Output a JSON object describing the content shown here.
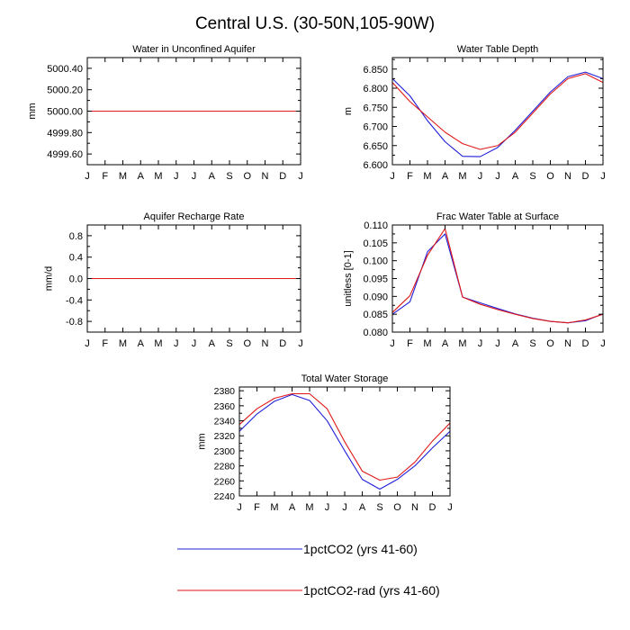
{
  "figure_title": "Central U.S. (30-50N,105-90W)",
  "months": [
    "J",
    "F",
    "M",
    "A",
    "M",
    "J",
    "J",
    "A",
    "S",
    "O",
    "N",
    "D",
    "J"
  ],
  "colors": {
    "blue": "#1f1fd8",
    "red": "#e01818"
  },
  "legend": [
    {
      "label": "1pctCO2 (yrs 41-60)",
      "color": "#1f1fd8"
    },
    {
      "label": "1pctCO2-rad (yrs 41-60)",
      "color": "#e01818"
    }
  ],
  "chart_data": [
    {
      "type": "line",
      "title": "Water in Unconfined Aquifer",
      "ylabel": "mm",
      "xlabel": "",
      "ylim": [
        4999.5,
        5000.5
      ],
      "yticks": [
        4999.6,
        4999.8,
        5000.0,
        5000.2,
        5000.4
      ],
      "ytick_labels": [
        "4999.60",
        "4999.80",
        "5000.00",
        "5000.20",
        "5000.40"
      ],
      "series": [
        {
          "name": "1pctCO2 (yrs 41-60)",
          "color": "blue",
          "values": [
            5000,
            5000,
            5000,
            5000,
            5000,
            5000,
            5000,
            5000,
            5000,
            5000,
            5000,
            5000,
            5000
          ]
        },
        {
          "name": "1pctCO2-rad (yrs 41-60)",
          "color": "red",
          "values": [
            5000,
            5000,
            5000,
            5000,
            5000,
            5000,
            5000,
            5000,
            5000,
            5000,
            5000,
            5000,
            5000
          ]
        }
      ]
    },
    {
      "type": "line",
      "title": "Water Table Depth",
      "ylabel": "m",
      "xlabel": "",
      "ylim": [
        6.6,
        6.88
      ],
      "yticks": [
        6.6,
        6.65,
        6.7,
        6.75,
        6.8,
        6.85
      ],
      "ytick_labels": [
        "6.600",
        "6.650",
        "6.700",
        "6.750",
        "6.800",
        "6.850"
      ],
      "series": [
        {
          "name": "1pctCO2 (yrs 41-60)",
          "color": "blue",
          "values": [
            6.825,
            6.78,
            6.715,
            6.66,
            6.622,
            6.621,
            6.645,
            6.69,
            6.74,
            6.79,
            6.83,
            6.842,
            6.825
          ]
        },
        {
          "name": "1pctCO2-rad (yrs 41-60)",
          "color": "red",
          "values": [
            6.815,
            6.765,
            6.725,
            6.685,
            6.655,
            6.64,
            6.65,
            6.685,
            6.735,
            6.785,
            6.825,
            6.838,
            6.815
          ]
        }
      ]
    },
    {
      "type": "line",
      "title": "Aquifer Recharge Rate",
      "ylabel": "mm/d",
      "xlabel": "",
      "ylim": [
        -1.0,
        1.0
      ],
      "yticks": [
        -0.8,
        -0.4,
        0.0,
        0.4,
        0.8
      ],
      "ytick_labels": [
        "-0.8",
        "-0.4",
        "0.0",
        "0.4",
        "0.8"
      ],
      "series": [
        {
          "name": "1pctCO2 (yrs 41-60)",
          "color": "blue",
          "values": [
            0,
            0,
            0,
            0,
            0,
            0,
            0,
            0,
            0,
            0,
            0,
            0,
            0
          ]
        },
        {
          "name": "1pctCO2-rad (yrs 41-60)",
          "color": "red",
          "values": [
            0,
            0,
            0,
            0,
            0,
            0,
            0,
            0,
            0,
            0,
            0,
            0,
            0
          ]
        }
      ]
    },
    {
      "type": "line",
      "title": "Frac Water Table at Surface",
      "ylabel": "unitless [0-1]",
      "xlabel": "",
      "ylim": [
        0.08,
        0.11
      ],
      "yticks": [
        0.08,
        0.085,
        0.09,
        0.095,
        0.1,
        0.105,
        0.11
      ],
      "ytick_labels": [
        "0.080",
        "0.085",
        "0.090",
        "0.095",
        "0.100",
        "0.105",
        "0.110"
      ],
      "series": [
        {
          "name": "1pctCO2 (yrs 41-60)",
          "color": "blue",
          "values": [
            0.085,
            0.0885,
            0.1025,
            0.1075,
            0.0898,
            0.0882,
            0.0866,
            0.0851,
            0.0839,
            0.083,
            0.0826,
            0.0832,
            0.0851
          ]
        },
        {
          "name": "1pctCO2-rad (yrs 41-60)",
          "color": "red",
          "values": [
            0.0855,
            0.0902,
            0.1015,
            0.109,
            0.0898,
            0.0878,
            0.0863,
            0.085,
            0.0838,
            0.083,
            0.0826,
            0.0834,
            0.085
          ]
        }
      ]
    },
    {
      "type": "line",
      "title": "Total Water Storage",
      "ylabel": "mm",
      "xlabel": "",
      "ylim": [
        2240,
        2385
      ],
      "yticks": [
        2240,
        2260,
        2280,
        2300,
        2320,
        2340,
        2360,
        2380
      ],
      "ytick_labels": [
        "2240",
        "2260",
        "2280",
        "2300",
        "2320",
        "2340",
        "2360",
        "2380"
      ],
      "series": [
        {
          "name": "1pctCO2 (yrs 41-60)",
          "color": "blue",
          "values": [
            2326,
            2349,
            2366,
            2375,
            2367,
            2340,
            2300,
            2262,
            2249,
            2262,
            2280,
            2304,
            2326
          ]
        },
        {
          "name": "1pctCO2-rad (yrs 41-60)",
          "color": "red",
          "values": [
            2335,
            2356,
            2370,
            2376,
            2376,
            2356,
            2312,
            2273,
            2261,
            2265,
            2285,
            2313,
            2337
          ]
        }
      ]
    }
  ]
}
